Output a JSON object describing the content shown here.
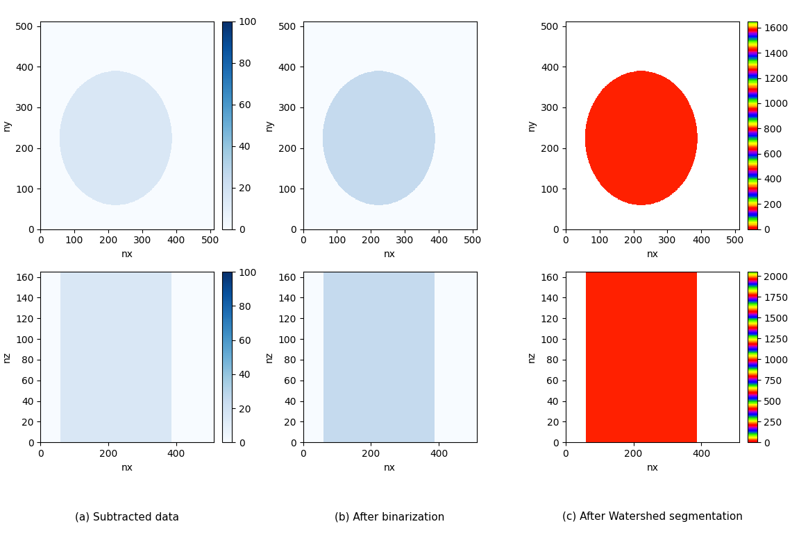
{
  "chart_data": [
    {
      "type": "heatmap",
      "xlabel": "nx",
      "ylabel": "ny",
      "xlim": [
        0,
        512
      ],
      "ylim": [
        0,
        512
      ],
      "xticks": [
        0,
        100,
        200,
        300,
        400,
        500
      ],
      "yticks": [
        0,
        100,
        200,
        300,
        400,
        500
      ],
      "color": "Blues",
      "background": 0,
      "region": {
        "shape": "circle",
        "center": [
          222,
          225
        ],
        "radius": 165,
        "value": 15
      },
      "color_range": [
        0,
        100
      ],
      "color_ticks": [
        0,
        20,
        40,
        60,
        80,
        100
      ]
    },
    {
      "type": "heatmap",
      "xlabel": "nx",
      "ylabel": "ny",
      "xlim": [
        0,
        512
      ],
      "ylim": [
        0,
        512
      ],
      "xticks": [
        0,
        100,
        200,
        300,
        400,
        500
      ],
      "yticks": [
        0,
        100,
        200,
        300,
        400,
        500
      ],
      "color": "Blues",
      "background": 0,
      "region": {
        "shape": "circle",
        "center": [
          222,
          225
        ],
        "radius": 165,
        "value": 25
      },
      "color_range": [
        0,
        100
      ]
    },
    {
      "type": "heatmap",
      "xlabel": "nx",
      "ylabel": "ny",
      "xlim": [
        0,
        512
      ],
      "ylim": [
        0,
        512
      ],
      "xticks": [
        0,
        100,
        200,
        300,
        400,
        500
      ],
      "yticks": [
        0,
        100,
        200,
        300,
        400,
        500
      ],
      "color": "prism",
      "region": {
        "shape": "circle",
        "center": [
          222,
          225
        ],
        "radius": 165,
        "value": 800
      },
      "color_range": [
        0,
        1650
      ],
      "color_ticks": [
        0,
        200,
        400,
        600,
        800,
        1000,
        1200,
        1400,
        1600
      ]
    },
    {
      "type": "heatmap",
      "xlabel": "nx",
      "ylabel": "nz",
      "xlim": [
        0,
        512
      ],
      "ylim": [
        0,
        165
      ],
      "xticks": [
        0,
        200,
        400
      ],
      "yticks": [
        0,
        20,
        40,
        60,
        80,
        100,
        120,
        140,
        160
      ],
      "color": "Blues",
      "background": 0,
      "region": {
        "shape": "rectangle",
        "x": [
          60,
          385
        ],
        "y": [
          0,
          165
        ],
        "value": 15
      },
      "color_range": [
        0,
        100
      ],
      "color_ticks": [
        0,
        20,
        40,
        60,
        80,
        100
      ]
    },
    {
      "type": "heatmap",
      "xlabel": "nx",
      "ylabel": "nz",
      "xlim": [
        0,
        512
      ],
      "ylim": [
        0,
        165
      ],
      "xticks": [
        0,
        200,
        400
      ],
      "yticks": [
        0,
        20,
        40,
        60,
        80,
        100,
        120,
        140,
        160
      ],
      "color": "Blues",
      "background": 0,
      "region": {
        "shape": "rectangle",
        "x": [
          60,
          385
        ],
        "y": [
          0,
          165
        ],
        "value": 25
      },
      "color_range": [
        0,
        100
      ]
    },
    {
      "type": "heatmap",
      "xlabel": "nx",
      "ylabel": "nz",
      "xlim": [
        0,
        512
      ],
      "ylim": [
        0,
        165
      ],
      "xticks": [
        0,
        200,
        400
      ],
      "yticks": [
        0,
        20,
        40,
        60,
        80,
        100,
        120,
        140,
        160
      ],
      "color": "prism",
      "region": {
        "shape": "rectangle",
        "x": [
          60,
          385
        ],
        "y": [
          0,
          165
        ],
        "value": 1000
      },
      "color_range": [
        0,
        2050
      ],
      "color_ticks": [
        0,
        250,
        500,
        750,
        1000,
        1250,
        1500,
        1750,
        2000
      ]
    }
  ],
  "captions": [
    "(a) Subtracted data",
    "(b) After binarization",
    "(c) After Watershed segmentation"
  ]
}
